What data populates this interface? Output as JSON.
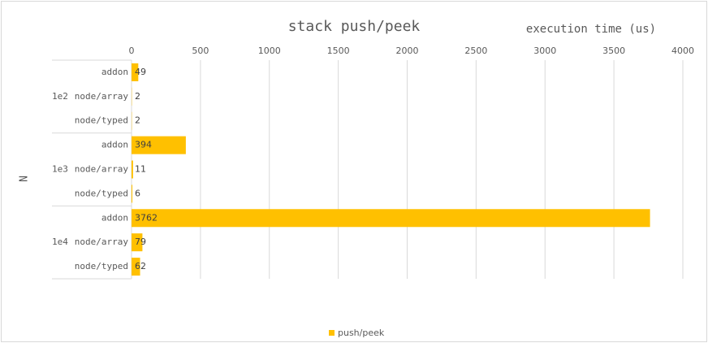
{
  "chart_data": {
    "type": "bar",
    "orientation": "horizontal",
    "title": "stack push/peek",
    "x_axis_label": "execution time (us)",
    "y_axis_label": "N",
    "groups": [
      "1e2",
      "1e3",
      "1e4"
    ],
    "categories": [
      "addon",
      "node/array",
      "node/typed",
      "addon",
      "node/array",
      "node/typed",
      "addon",
      "node/array",
      "node/typed"
    ],
    "series": [
      {
        "name": "push/peek",
        "color": "#ffc000",
        "values": [
          49,
          2,
          2,
          394,
          11,
          6,
          3762,
          79,
          62
        ]
      }
    ],
    "xlim": [
      0,
      4000
    ],
    "xticks": [
      0,
      500,
      1000,
      1500,
      2000,
      2500,
      3000,
      3500,
      4000
    ],
    "grid": true,
    "legend": "bottom"
  }
}
